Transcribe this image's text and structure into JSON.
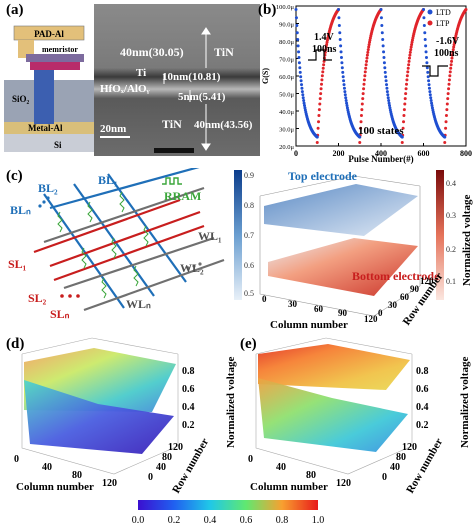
{
  "panels": {
    "a": {
      "label": "(a)",
      "schematic": {
        "pad": "PAD-Al",
        "memristor": "memristor",
        "oxide": "SiO₂",
        "metal": "Metal-Al",
        "substrate": "Si"
      },
      "tem": {
        "tin_top": "40nm(30.05)",
        "tin_top_label": "TiN",
        "ti": "Ti",
        "ti_thickness": "10nm(10.81)",
        "oxide": "HfOₓ/AlOᵧ",
        "oxide_thickness": "5nm(5.41)",
        "tin_bottom": "TiN",
        "tin_bottom_thickness": "40nm(43.56)",
        "scalebar": "20nm"
      }
    },
    "b": {
      "label": "(b)",
      "annot_pos": "1.4V",
      "annot_pos_time": "100ns",
      "annot_neg": "-1.6V",
      "annot_neg_time": "100ns",
      "annot_states": "100 states"
    },
    "c": {
      "label": "(c)",
      "rram": "RRAM",
      "bitlines": [
        "BL₁",
        "BL₂",
        "BLₙ"
      ],
      "sourcelines": [
        "SL₁",
        "SL₂",
        "SLₙ"
      ],
      "wordlines": [
        "WL₁",
        "WL₂",
        "WLₙ"
      ],
      "top_electrode": "Top electrode",
      "bottom_electrode": "Bottom\nelectrode",
      "xlabel": "Column number",
      "ylabel": "Row number",
      "zlabel": "Normalized voltage",
      "x_ticks": [
        "0",
        "30",
        "60",
        "90",
        "120"
      ],
      "y_ticks": [
        "0",
        "30",
        "60",
        "90",
        "120"
      ],
      "blue_cbar_ticks": [
        "0.9",
        "0.8",
        "0.7",
        "0.6",
        "0.5"
      ],
      "red_cbar_ticks": [
        "0.4",
        "0.3",
        "0.2",
        "0.1"
      ]
    },
    "d": {
      "label": "(d)",
      "xlabel": "Column number",
      "ylabel": "Row number",
      "zlabel": "Normalized voltage",
      "x_ticks": [
        "0",
        "40",
        "80",
        "120"
      ],
      "y_ticks": [
        "0",
        "40",
        "80",
        "120"
      ],
      "z_ticks": [
        "0.8",
        "0.6",
        "0.4",
        "0.2"
      ]
    },
    "e": {
      "label": "(e)",
      "xlabel": "Column number",
      "ylabel": "Row number",
      "zlabel": "Normalized voltage",
      "x_ticks": [
        "0",
        "40",
        "80",
        "120"
      ],
      "y_ticks": [
        "0",
        "40",
        "80",
        "120"
      ],
      "z_ticks": [
        "0.8",
        "0.6",
        "0.4",
        "0.2"
      ]
    },
    "colorbar": {
      "ticks": [
        "0.0",
        "0.2",
        "0.4",
        "0.6",
        "0.8",
        "1.0"
      ]
    }
  },
  "chart_data": {
    "type": "scatter",
    "xlabel": "Pulse Number(#)",
    "ylabel": "G(S)",
    "xlim": [
      0,
      800
    ],
    "ylim": [
      2e-05,
      0.0001
    ],
    "x_ticks": [
      "0",
      "200",
      "400",
      "600",
      "800"
    ],
    "y_ticks": [
      "100.0μ",
      "90.0μ",
      "80.0μ",
      "70.0μ",
      "60.0μ",
      "50.0μ",
      "40.0μ",
      "30.0μ",
      "20.0μ"
    ],
    "legend_position": "top-right",
    "cycles": [
      [
        0,
        100
      ],
      [
        200,
        300
      ],
      [
        400,
        500
      ],
      [
        600,
        700
      ]
    ],
    "series": [
      {
        "name": "LTD",
        "color": "#1f4fd1",
        "description_of_trend": "decays 98μ → 22μ over each 100-pulse depression phase",
        "start": 9.8e-05,
        "end": 2.2e-05
      },
      {
        "name": "LTP",
        "color": "#e0242a",
        "description_of_trend": "rises 22μ → 98μ over each 100-pulse potentiation phase",
        "start": 2.2e-05,
        "end": 9.8e-05
      }
    ]
  }
}
